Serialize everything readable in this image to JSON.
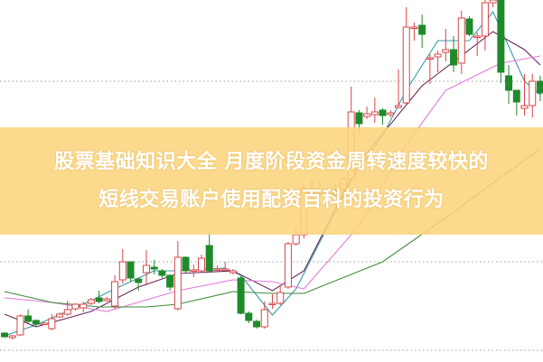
{
  "headline": {
    "line1": "股票基础知识大全 月度阶段资金周转速度较快的",
    "line2": "短线交易账户使用配资百科的投资行为"
  },
  "chart_data": {
    "type": "candlestick",
    "title": "",
    "xlabel": "",
    "ylabel": "",
    "ylim": [
      0,
      100
    ],
    "grid": "dotted horizontal",
    "colors": {
      "up": "#d9444a",
      "down": "#1e8a2a",
      "ma_fast": "#3a9aa8",
      "ma_mid": "#6a2a5a",
      "ma_slow": "#e27ad8",
      "ma_long": "#3f8a3a",
      "banner": "#fcd57d"
    },
    "candles": [
      [
        7.75,
        6.75,
        8,
        6.5
      ],
      [
        6.5,
        7,
        7.25,
        6
      ],
      [
        7.25,
        12.5,
        13,
        7
      ],
      [
        12.5,
        11,
        14.25,
        10.5
      ],
      [
        11.25,
        10.25,
        11.5,
        10
      ],
      [
        10.25,
        10.5,
        10.75,
        10
      ],
      [
        9,
        11.75,
        13,
        8.5
      ],
      [
        12.25,
        13,
        13.5,
        12
      ],
      [
        13,
        14.25,
        16.75,
        12.5
      ],
      [
        14.5,
        15.75,
        16,
        14
      ],
      [
        14.75,
        15.75,
        16.5,
        13.5
      ],
      [
        16,
        17,
        17.5,
        15.5
      ],
      [
        17.5,
        16.5,
        19.5,
        16
      ],
      [
        16.75,
        17.25,
        17.75,
        16.5
      ],
      [
        15.25,
        22,
        23.75,
        14.5
      ],
      [
        22.5,
        27.5,
        31,
        21.5
      ],
      [
        27.5,
        23,
        27.5,
        22
      ],
      [
        22.75,
        21.75,
        23,
        19.5
      ],
      [
        24.5,
        26.5,
        30.75,
        21
      ],
      [
        26,
        25.5,
        28,
        24
      ],
      [
        25,
        23.75,
        25.5,
        23
      ],
      [
        23.75,
        20.5,
        24,
        19.5
      ],
      [
        14.5,
        28.75,
        33.25,
        14
      ],
      [
        28.75,
        25,
        29,
        24.5
      ],
      [
        25,
        25.25,
        26.75,
        23.25
      ],
      [
        25,
        28.5,
        29.5,
        24.5
      ],
      [
        32,
        25,
        35.5,
        24.5
      ],
      [
        25.5,
        25.5,
        26.5,
        25
      ],
      [
        25.5,
        25.5,
        27.5,
        25
      ],
      [
        24.5,
        25,
        25.5,
        24
      ],
      [
        23,
        13.25,
        23.5,
        13
      ],
      [
        13.25,
        11.25,
        13.75,
        10.5
      ],
      [
        11,
        9.5,
        11.5,
        9
      ],
      [
        9.5,
        14.25,
        16.5,
        9
      ],
      [
        16,
        16,
        18.5,
        14.5
      ],
      [
        16,
        19,
        21,
        15.5
      ],
      [
        20.5,
        32.5,
        33,
        20
      ],
      [
        32.5,
        35,
        37,
        32
      ],
      [
        35,
        47.75,
        49,
        34
      ],
      [
        47.5,
        46.5,
        50,
        45
      ],
      [
        46.5,
        46.5,
        50,
        46
      ],
      [
        46.5,
        46.5,
        48,
        46
      ],
      [
        47.5,
        46,
        49,
        45.5
      ],
      [
        47.5,
        50.5,
        51,
        45
      ],
      [
        50.5,
        69,
        76,
        50
      ],
      [
        68.75,
        65.75,
        69.5,
        63
      ],
      [
        67.75,
        68.5,
        70.5,
        67
      ],
      [
        68.25,
        69,
        73,
        66
      ],
      [
        69.5,
        68,
        70,
        65.5
      ],
      [
        68.25,
        68.75,
        69.5,
        67.5
      ],
      [
        70.25,
        70.75,
        80.75,
        70
      ],
      [
        71.5,
        92.5,
        98,
        71
      ],
      [
        92.5,
        92.5,
        93.75,
        88.75
      ],
      [
        93,
        90.5,
        96,
        86.75
      ],
      [
        84,
        84,
        85,
        76.75
      ],
      [
        84.25,
        85,
        86,
        80
      ],
      [
        85.5,
        86.25,
        92,
        83
      ],
      [
        86.25,
        82,
        90,
        80
      ],
      [
        82.5,
        95,
        97,
        79.5
      ],
      [
        94.75,
        90.5,
        95.5,
        90
      ],
      [
        90,
        90,
        91,
        84.5
      ],
      [
        90,
        99.25,
        100,
        86
      ],
      [
        99.25,
        100,
        100,
        98
      ],
      [
        100,
        80,
        100,
        77
      ],
      [
        79,
        75,
        82,
        71.25
      ],
      [
        75,
        71.75,
        75,
        68
      ],
      [
        70,
        70.75,
        79.5,
        68
      ],
      [
        70.75,
        77.5,
        79.5,
        67.5
      ],
      [
        77.5,
        74.25,
        79,
        72
      ]
    ],
    "candle_fields": [
      "open",
      "close",
      "high",
      "low"
    ],
    "moving_averages": [
      {
        "key": "ma_fast",
        "points": [
          [
            0,
            7
          ],
          [
            4,
            10
          ],
          [
            11,
            16.75
          ],
          [
            14,
            20
          ],
          [
            19,
            25
          ],
          [
            22,
            25
          ],
          [
            28,
            25.75
          ],
          [
            30,
            23.75
          ],
          [
            34,
            12.75
          ],
          [
            37,
            20
          ],
          [
            44,
            50
          ],
          [
            48,
            62.5
          ],
          [
            51,
            75
          ],
          [
            55,
            88.75
          ],
          [
            59,
            88.75
          ],
          [
            62,
            96.75
          ],
          [
            66,
            77.5
          ],
          [
            68,
            73.75
          ]
        ]
      },
      {
        "key": "ma_mid",
        "points": [
          [
            0,
            13
          ],
          [
            4,
            9.5
          ],
          [
            11,
            13.75
          ],
          [
            17,
            20.5
          ],
          [
            22,
            24.25
          ],
          [
            29,
            25
          ],
          [
            34,
            19.5
          ],
          [
            38,
            25
          ],
          [
            45,
            55
          ],
          [
            53,
            76.25
          ],
          [
            62,
            91.25
          ],
          [
            66,
            86.25
          ],
          [
            68,
            82
          ]
        ]
      },
      {
        "key": "ma_slow",
        "points": [
          [
            0,
            17.5
          ],
          [
            6,
            16.25
          ],
          [
            13,
            13.75
          ],
          [
            22,
            19.5
          ],
          [
            29,
            22.5
          ],
          [
            34,
            22
          ],
          [
            38,
            20
          ],
          [
            45,
            37.5
          ],
          [
            51,
            60
          ],
          [
            56,
            75
          ],
          [
            63,
            82.5
          ],
          [
            68,
            84.5
          ]
        ]
      },
      {
        "key": "ma_long",
        "points": [
          [
            0,
            19.25
          ],
          [
            6,
            16.25
          ],
          [
            12,
            15
          ],
          [
            18,
            15
          ],
          [
            22,
            15.75
          ],
          [
            29,
            19.25
          ],
          [
            34,
            18.75
          ],
          [
            38,
            18.75
          ],
          [
            48,
            27.5
          ],
          [
            57,
            41.25
          ],
          [
            64,
            52.5
          ],
          [
            68,
            58.75
          ]
        ]
      }
    ]
  }
}
